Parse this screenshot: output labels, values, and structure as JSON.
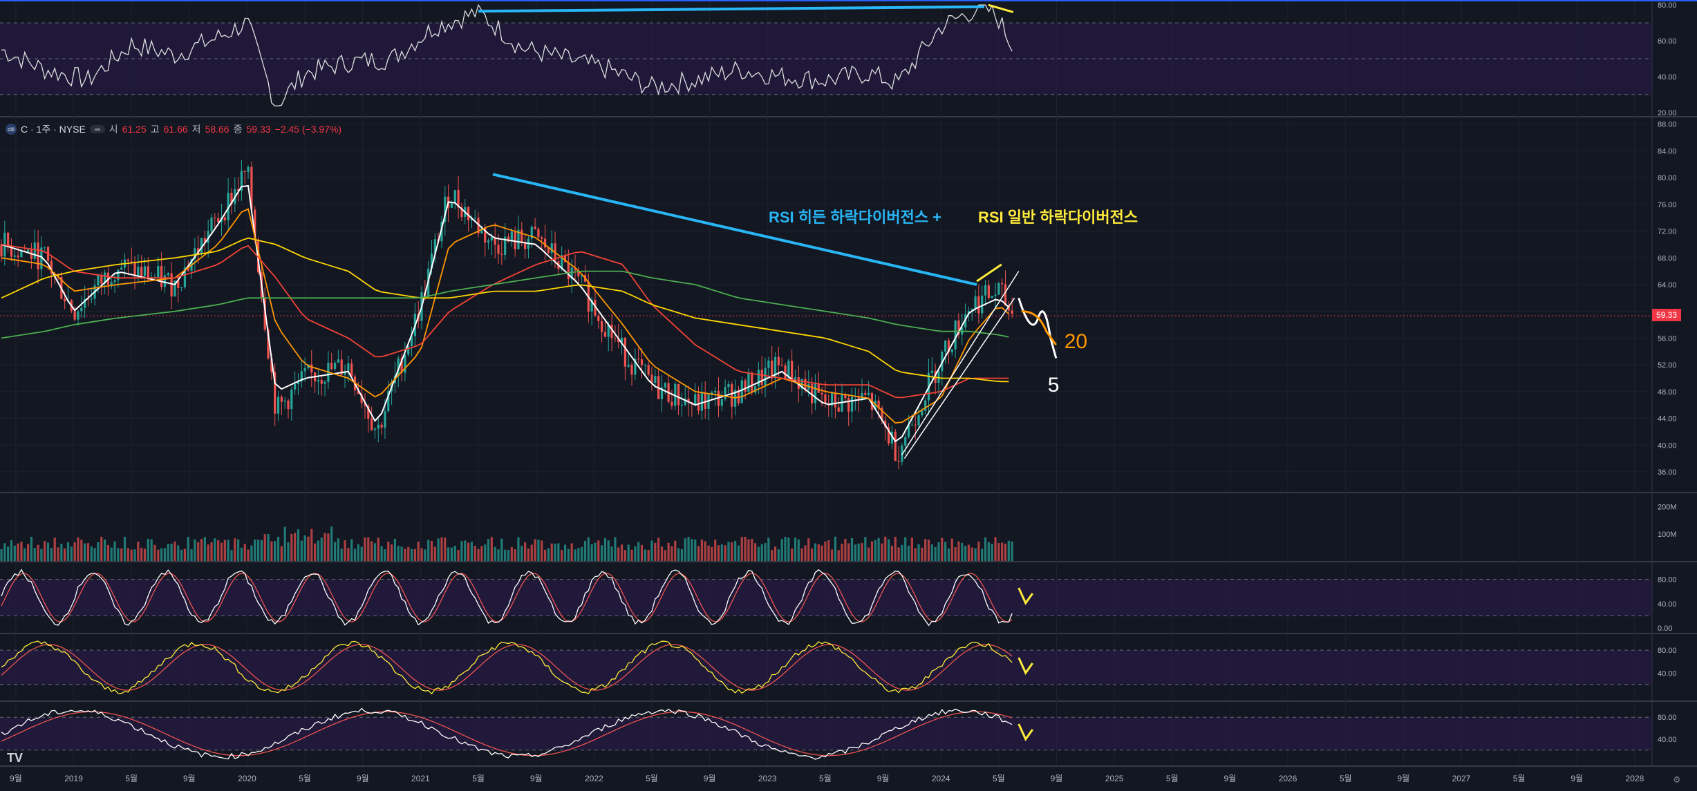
{
  "symbol": {
    "name": "C · 1주 · NYSE",
    "logo_text": "citi",
    "open_label": "시",
    "open": "61.25",
    "high_label": "고",
    "high": "61.66",
    "low_label": "저",
    "low": "58.66",
    "close_label": "종",
    "close": "59.33",
    "change": "−2.45 (−3.97%)"
  },
  "current_price": "59.33",
  "annotations": {
    "hidden_divergence": "RSI 히든 하락다이버전스 +",
    "regular_divergence": "RSI 일반 하락다이버전스",
    "handwritten_20": "20",
    "handwritten_5": "5"
  },
  "colors": {
    "background": "#131722",
    "bull": "#26a69a",
    "bear": "#ef5350",
    "ma5": "#ffffff",
    "ma20": "#ff9800",
    "ma60": "#f44336",
    "ma120": "#ffd600",
    "ma240": "#4caf50",
    "divergence_line": "#29b6f6",
    "divergence_mark": "#ffeb3b",
    "panel_band": "#2a1a4a"
  },
  "icons": [
    "tradingview-logo",
    "gear-icon",
    "eye-icon",
    "citi-logo"
  ],
  "chart_data": [
    {
      "type": "line",
      "panel": "RSI",
      "y_ticks": [
        "80.00",
        "60.00",
        "40.00",
        "20.00"
      ],
      "ylim": [
        20,
        80
      ],
      "band": [
        30,
        70
      ],
      "dates": [
        "2018-08",
        "2018-11",
        "2019-02",
        "2019-05",
        "2019-08",
        "2019-11",
        "2020-01",
        "2020-03",
        "2020-05",
        "2020-08",
        "2020-11",
        "2021-02",
        "2021-05",
        "2021-08",
        "2021-11",
        "2022-02",
        "2022-05",
        "2022-08",
        "2022-11",
        "2023-02",
        "2023-05",
        "2023-08",
        "2023-10",
        "2024-01",
        "2024-03",
        "2024-04",
        "2024-05",
        "2024-06"
      ],
      "values": [
        55,
        44,
        38,
        58,
        52,
        62,
        70,
        24,
        42,
        48,
        50,
        68,
        76,
        56,
        50,
        44,
        34,
        38,
        44,
        40,
        38,
        42,
        36,
        68,
        76,
        79,
        72,
        56
      ]
    },
    {
      "type": "candlestick",
      "panel": "price",
      "y_ticks": [
        "88.00",
        "84.00",
        "80.00",
        "76.00",
        "72.00",
        "68.00",
        "64.00",
        "60.00",
        "56.00",
        "52.00",
        "48.00",
        "44.00",
        "40.00",
        "36.00"
      ],
      "ylim": [
        33,
        89
      ],
      "x_ticks": [
        "9월",
        "2019",
        "5월",
        "9월",
        "2020",
        "5월",
        "9월",
        "2021",
        "5월",
        "9월",
        "2022",
        "5월",
        "9월",
        "2023",
        "5월",
        "9월",
        "2024",
        "5월",
        "9월",
        "2025",
        "5월",
        "9월",
        "2026",
        "5월",
        "9월",
        "2027",
        "5월",
        "9월",
        "2028"
      ],
      "dates": [
        "2018-08",
        "2018-11",
        "2019-01",
        "2019-04",
        "2019-08",
        "2019-11",
        "2020-01",
        "2020-03",
        "2020-05",
        "2020-08",
        "2020-10",
        "2021-01",
        "2021-03",
        "2021-06",
        "2021-09",
        "2021-12",
        "2022-03",
        "2022-05",
        "2022-08",
        "2022-11",
        "2023-02",
        "2023-05",
        "2023-08",
        "2023-10",
        "2024-01",
        "2024-03",
        "2024-05",
        "2024-06"
      ],
      "close": [
        70,
        68,
        60,
        67,
        64,
        74,
        81,
        45,
        50,
        52,
        42,
        61,
        78,
        70,
        71,
        64,
        54,
        49,
        46,
        48,
        52,
        46,
        47,
        39,
        53,
        61,
        63,
        59.33
      ],
      "moving_averages": [
        {
          "name": "MA5",
          "values": [
            70,
            68,
            60,
            66,
            64,
            73,
            80,
            48,
            50,
            51,
            43,
            60,
            77,
            71,
            70,
            64,
            55,
            49,
            46,
            48,
            51,
            46,
            47,
            40,
            52,
            60,
            62,
            60
          ]
        },
        {
          "name": "MA20",
          "values": [
            68,
            67,
            63,
            64,
            65,
            70,
            76,
            58,
            52,
            50,
            47,
            54,
            70,
            73,
            71,
            66,
            58,
            52,
            48,
            47,
            50,
            48,
            47,
            43,
            47,
            56,
            61,
            59
          ]
        },
        {
          "name": "MA60",
          "values": [
            70,
            69,
            66,
            65,
            65,
            67,
            70,
            65,
            59,
            56,
            53,
            55,
            60,
            64,
            67,
            69,
            67,
            61,
            55,
            51,
            50,
            49,
            49,
            47,
            48,
            50,
            50,
            50
          ]
        },
        {
          "name": "MA120",
          "values": [
            62,
            65,
            66,
            67,
            68,
            69,
            71,
            70,
            68,
            66,
            63,
            62,
            62,
            63,
            63,
            64,
            63,
            61,
            59,
            58,
            57,
            56,
            54,
            51,
            50,
            50,
            49.5,
            49.5
          ]
        },
        {
          "name": "MA240",
          "values": [
            56,
            57,
            58,
            59,
            60,
            61,
            62,
            62,
            62,
            62,
            62,
            62,
            63,
            64,
            65,
            66,
            66,
            65,
            64,
            62,
            61,
            60,
            59,
            58,
            57,
            57,
            56.5,
            56
          ]
        }
      ]
    },
    {
      "type": "bar",
      "panel": "volume",
      "y_ticks": [
        "200M",
        "100M"
      ],
      "ylim": [
        0,
        250
      ]
    },
    {
      "type": "line",
      "panel": "stochastic-fast",
      "y_ticks": [
        "80.00",
        "40.00",
        "0.00"
      ],
      "ylim": [
        0,
        100
      ]
    },
    {
      "type": "line",
      "panel": "stochastic-mid",
      "y_ticks": [
        "80.00",
        "40.00"
      ],
      "ylim": [
        0,
        100
      ]
    },
    {
      "type": "line",
      "panel": "stochastic-slow",
      "y_ticks": [
        "80.00",
        "40.00"
      ],
      "ylim": [
        0,
        100
      ]
    }
  ]
}
